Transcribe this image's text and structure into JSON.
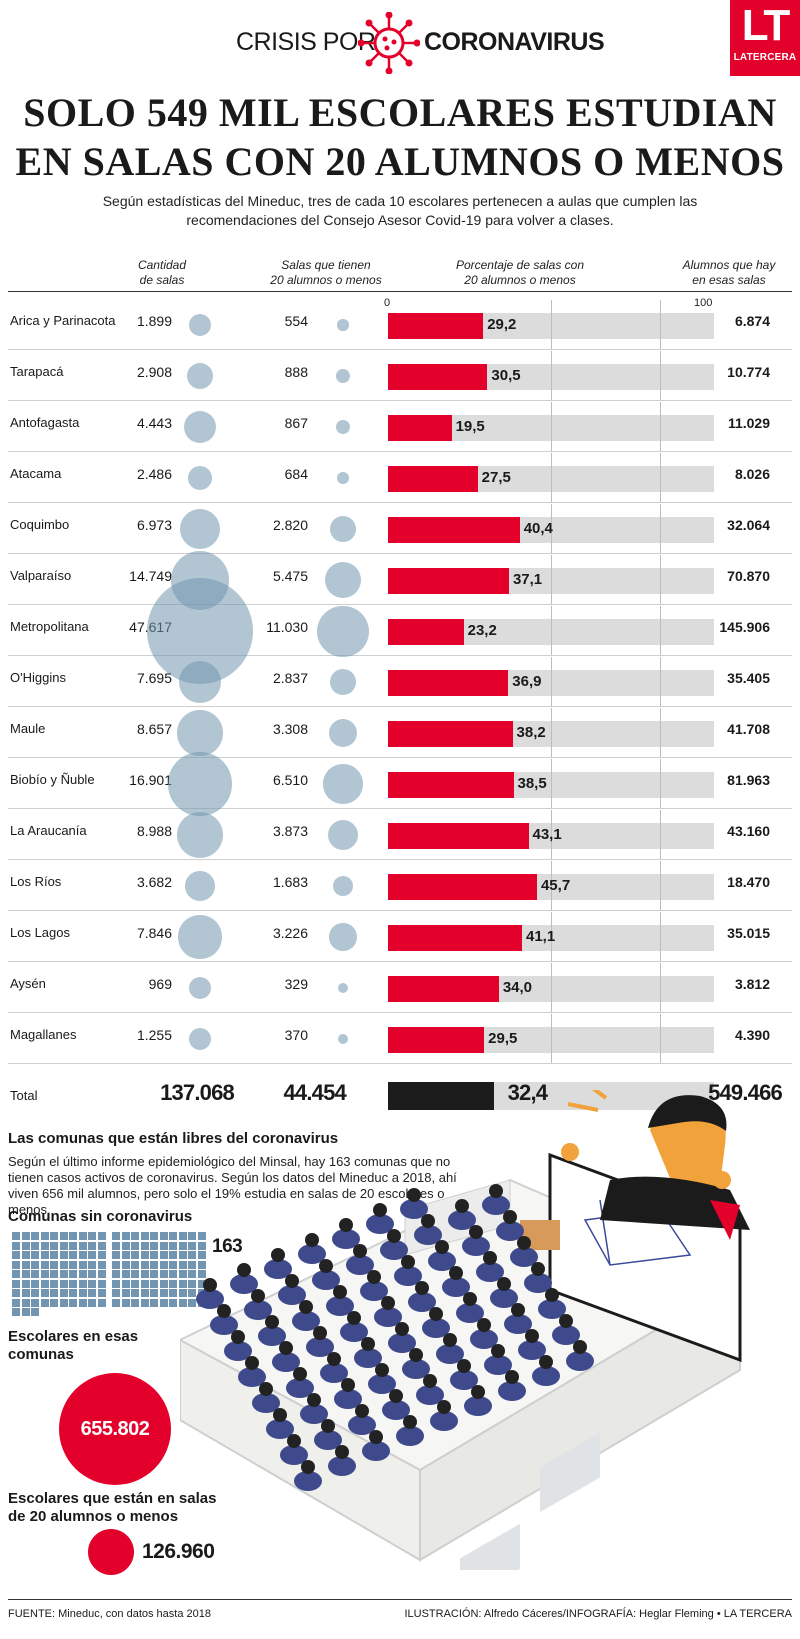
{
  "brand": {
    "left": "CRISIS POR",
    "right": "CORONAVIRUS",
    "logo_mark": "LT",
    "logo_name": "LATERCERA"
  },
  "headline": [
    "SOLO 549 MIL ESCOLARES ESTUDIAN",
    "EN SALAS CON 20 ALUMNOS O MENOS"
  ],
  "subhead": "Según estadísticas del Mineduc, tres de cada 10 escolares pertenecen a aulas que cumplen las recomendaciones del Consejo Asesor Covid-19 para volver a clases.",
  "columns": {
    "c1": [
      "Cantidad",
      "de salas"
    ],
    "c2": [
      "Salas que tienen",
      "20 alumnos o menos"
    ],
    "c3": [
      "Porcentaje de salas con",
      "20 alumnos o menos"
    ],
    "c4": [
      "Alumnos que hay",
      "en esas salas"
    ]
  },
  "scale": {
    "min": "0",
    "max": "100"
  },
  "chart_data": {
    "type": "table",
    "xlim": [
      0,
      100
    ],
    "rows": [
      {
        "region": "Arica y Parinacota",
        "salas": "1.899",
        "salas_n": 1899,
        "salas20": "554",
        "salas20_n": 554,
        "pct": 29.2,
        "pct_label": "29,2",
        "alumnos": "6.874"
      },
      {
        "region": "Tarapacá",
        "salas": "2.908",
        "salas_n": 2908,
        "salas20": "888",
        "salas20_n": 888,
        "pct": 30.5,
        "pct_label": "30,5",
        "alumnos": "10.774"
      },
      {
        "region": "Antofagasta",
        "salas": "4.443",
        "salas_n": 4443,
        "salas20": "867",
        "salas20_n": 867,
        "pct": 19.5,
        "pct_label": "19,5",
        "alumnos": "11.029"
      },
      {
        "region": "Atacama",
        "salas": "2.486",
        "salas_n": 2486,
        "salas20": "684",
        "salas20_n": 684,
        "pct": 27.5,
        "pct_label": "27,5",
        "alumnos": "8.026"
      },
      {
        "region": "Coquimbo",
        "salas": "6.973",
        "salas_n": 6973,
        "salas20": "2.820",
        "salas20_n": 2820,
        "pct": 40.4,
        "pct_label": "40,4",
        "alumnos": "32.064"
      },
      {
        "region": "Valparaíso",
        "salas": "14.749",
        "salas_n": 14749,
        "salas20": "5.475",
        "salas20_n": 5475,
        "pct": 37.1,
        "pct_label": "37,1",
        "alumnos": "70.870"
      },
      {
        "region": "Metropolitana",
        "salas": "47.617",
        "salas_n": 47617,
        "salas20": "11.030",
        "salas20_n": 11030,
        "pct": 23.2,
        "pct_label": "23,2",
        "alumnos": "145.906"
      },
      {
        "region": "O'Higgins",
        "salas": "7.695",
        "salas_n": 7695,
        "salas20": "2.837",
        "salas20_n": 2837,
        "pct": 36.9,
        "pct_label": "36,9",
        "alumnos": "35.405"
      },
      {
        "region": "Maule",
        "salas": "8.657",
        "salas_n": 8657,
        "salas20": "3.308",
        "salas20_n": 3308,
        "pct": 38.2,
        "pct_label": "38,2",
        "alumnos": "41.708"
      },
      {
        "region": "Biobío y Ñuble",
        "salas": "16.901",
        "salas_n": 16901,
        "salas20": "6.510",
        "salas20_n": 6510,
        "pct": 38.5,
        "pct_label": "38,5",
        "alumnos": "81.963"
      },
      {
        "region": "La Araucanía",
        "salas": "8.988",
        "salas_n": 8988,
        "salas20": "3.873",
        "salas20_n": 3873,
        "pct": 43.1,
        "pct_label": "43,1",
        "alumnos": "43.160"
      },
      {
        "region": "Los Ríos",
        "salas": "3.682",
        "salas_n": 3682,
        "salas20": "1.683",
        "salas20_n": 1683,
        "pct": 45.7,
        "pct_label": "45,7",
        "alumnos": "18.470"
      },
      {
        "region": "Los Lagos",
        "salas": "7.846",
        "salas_n": 7846,
        "salas20": "3.226",
        "salas20_n": 3226,
        "pct": 41.1,
        "pct_label": "41,1",
        "alumnos": "35.015"
      },
      {
        "region": "Aysén",
        "salas": "969",
        "salas_n": 969,
        "salas20": "329",
        "salas20_n": 329,
        "pct": 34.0,
        "pct_label": "34,0",
        "alumnos": "3.812"
      },
      {
        "region": "Magallanes",
        "salas": "1.255",
        "salas_n": 1255,
        "salas20": "370",
        "salas20_n": 370,
        "pct": 29.5,
        "pct_label": "29,5",
        "alumnos": "4.390"
      }
    ],
    "total": {
      "region": "Total",
      "salas": "137.068",
      "salas20": "44.454",
      "pct": 32.4,
      "pct_label": "32,4",
      "alumnos": "549.466"
    }
  },
  "comunas": {
    "title": "Las comunas que están libres del coronavirus",
    "text": "Según el último informe epidemiológico del Minsal, hay 163 comunas que no tienen casos activos de coronavirus. Según los datos del Mineduc a 2018, ahí viven 656 mil alumnos, pero solo el 19% estudia en salas de 20 escolares o menos.",
    "sin_label": "Comunas sin coronavirus",
    "sin_value": "163",
    "sin_count": 163,
    "escolares_label": [
      "Escolares en esas",
      "comunas"
    ],
    "escolares_value": "655.802",
    "salas20_label": [
      "Escolares que están en salas",
      "de 20 alumnos o menos"
    ],
    "salas20_value": "126.960"
  },
  "footer": {
    "source": "FUENTE: Mineduc, con datos hasta 2018",
    "credits": "ILUSTRACIÓN: Alfredo Cáceres/INFOGRAFÍA: Heglar Fleming • LA TERCERA"
  },
  "colors": {
    "accent": "#e3002a",
    "bubble": "#7396af",
    "track": "#dcdcdc",
    "total_bar": "#1b1b1b",
    "icon_square": "#7295b2"
  }
}
